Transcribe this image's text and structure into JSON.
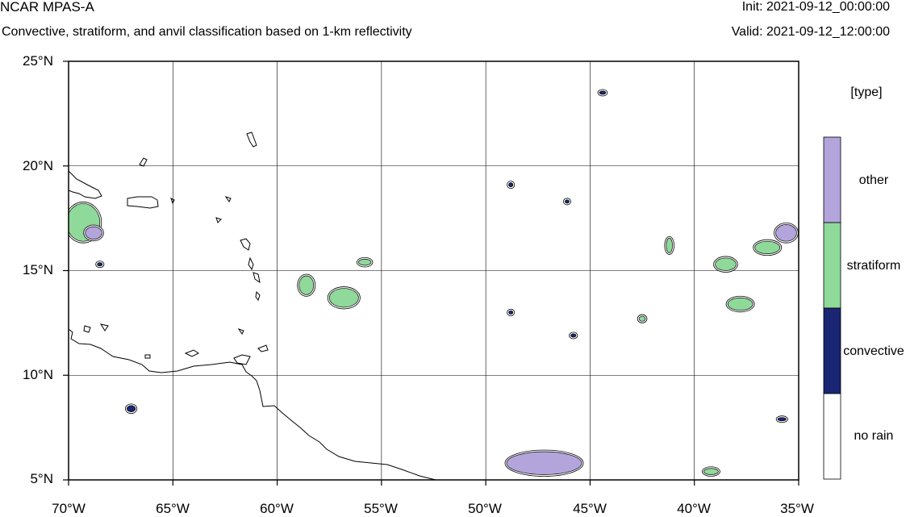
{
  "header": {
    "title": "NCAR MPAS-A",
    "subtitle": "Convective, stratiform, and anvil classification based on 1-km reflectivity",
    "init": "Init: 2021-09-12_00:00:00",
    "valid": "Valid: 2021-09-12_12:00:00"
  },
  "map": {
    "lon_range": [
      -70,
      -35
    ],
    "lat_range": [
      5,
      25
    ],
    "lat_ticks": [
      {
        "value": 25,
        "label": "25°N"
      },
      {
        "value": 20,
        "label": "20°N"
      },
      {
        "value": 15,
        "label": "15°N"
      },
      {
        "value": 10,
        "label": "10°N"
      },
      {
        "value": 5,
        "label": "5°N"
      }
    ],
    "lon_ticks": [
      {
        "value": -70,
        "label": "70°W"
      },
      {
        "value": -65,
        "label": "65°W"
      },
      {
        "value": -60,
        "label": "60°W"
      },
      {
        "value": -55,
        "label": "55°W"
      },
      {
        "value": -50,
        "label": "50°W"
      },
      {
        "value": -45,
        "label": "45°W"
      },
      {
        "value": -40,
        "label": "40°W"
      },
      {
        "value": -35,
        "label": "35°W"
      }
    ],
    "grid_lines": true
  },
  "legend": {
    "title": "[type]",
    "entries": [
      {
        "label": "other",
        "color": "#b3a4dc"
      },
      {
        "label": "stratiform",
        "color": "#8fd99a"
      },
      {
        "label": "convective",
        "color": "#1a2673"
      },
      {
        "label": "no rain",
        "color": "#ffffff"
      }
    ]
  },
  "colors": {
    "coastline": "#000000",
    "grid": "#000000"
  },
  "features": [
    {
      "name": "cluster-puerto-rico",
      "lon": -69.3,
      "lat": 17.3,
      "rx": 0.8,
      "ry": 0.9,
      "cls": "stratiform"
    },
    {
      "name": "cluster-puerto-rico-b",
      "lon": -68.8,
      "lat": 16.8,
      "rx": 0.4,
      "ry": 0.3,
      "cls": "other"
    },
    {
      "name": "cluster-barbados-a",
      "lon": -58.6,
      "lat": 14.3,
      "rx": 0.35,
      "ry": 0.45,
      "cls": "stratiform"
    },
    {
      "name": "cluster-barbados-b",
      "lon": -56.8,
      "lat": 13.7,
      "rx": 0.7,
      "ry": 0.45,
      "cls": "stratiform"
    },
    {
      "name": "cluster-56w-16n",
      "lon": -55.8,
      "lat": 15.4,
      "rx": 0.3,
      "ry": 0.15,
      "cls": "stratiform"
    },
    {
      "name": "cluster-41w-16n",
      "lon": -41.2,
      "lat": 16.2,
      "rx": 0.15,
      "ry": 0.35,
      "cls": "stratiform"
    },
    {
      "name": "cluster-east-a",
      "lon": -38.5,
      "lat": 15.3,
      "rx": 0.5,
      "ry": 0.3,
      "cls": "stratiform"
    },
    {
      "name": "cluster-east-b",
      "lon": -36.5,
      "lat": 16.1,
      "rx": 0.6,
      "ry": 0.3,
      "cls": "stratiform"
    },
    {
      "name": "cluster-east-c",
      "lon": -35.6,
      "lat": 16.8,
      "rx": 0.5,
      "ry": 0.4,
      "cls": "other"
    },
    {
      "name": "cluster-east-d",
      "lon": -37.8,
      "lat": 13.4,
      "rx": 0.6,
      "ry": 0.3,
      "cls": "stratiform"
    },
    {
      "name": "cluster-47w-6n",
      "lon": -47.2,
      "lat": 5.8,
      "rx": 1.8,
      "ry": 0.55,
      "cls": "other"
    },
    {
      "name": "cluster-42w-13n",
      "lon": -42.5,
      "lat": 12.7,
      "rx": 0.15,
      "ry": 0.12,
      "cls": "stratiform"
    },
    {
      "name": "cluster-39w-5n",
      "lon": -39.2,
      "lat": 5.4,
      "rx": 0.35,
      "ry": 0.15,
      "cls": "stratiform"
    },
    {
      "name": "cell-67w-8n",
      "lon": -67.0,
      "lat": 8.4,
      "rx": 0.2,
      "ry": 0.15,
      "cls": "convective"
    },
    {
      "name": "cell-45w-14n",
      "lon": -45.8,
      "lat": 11.9,
      "rx": 0.12,
      "ry": 0.08,
      "cls": "convective"
    },
    {
      "name": "cell-49w-13n",
      "lon": -48.8,
      "lat": 13.0,
      "rx": 0.1,
      "ry": 0.08,
      "cls": "convective"
    },
    {
      "name": "cell-45w-18n",
      "lon": -46.1,
      "lat": 18.3,
      "rx": 0.1,
      "ry": 0.08,
      "cls": "convective"
    },
    {
      "name": "cell-49w-19n",
      "lon": -48.8,
      "lat": 19.1,
      "rx": 0.1,
      "ry": 0.1,
      "cls": "convective"
    },
    {
      "name": "cell-44w-23n",
      "lon": -44.4,
      "lat": 23.5,
      "rx": 0.15,
      "ry": 0.08,
      "cls": "convective"
    },
    {
      "name": "cell-36w-8n",
      "lon": -35.8,
      "lat": 7.9,
      "rx": 0.2,
      "ry": 0.08,
      "cls": "convective"
    },
    {
      "name": "cell-68w-15n",
      "lon": -68.5,
      "lat": 15.3,
      "rx": 0.12,
      "ry": 0.08,
      "cls": "convective"
    }
  ]
}
